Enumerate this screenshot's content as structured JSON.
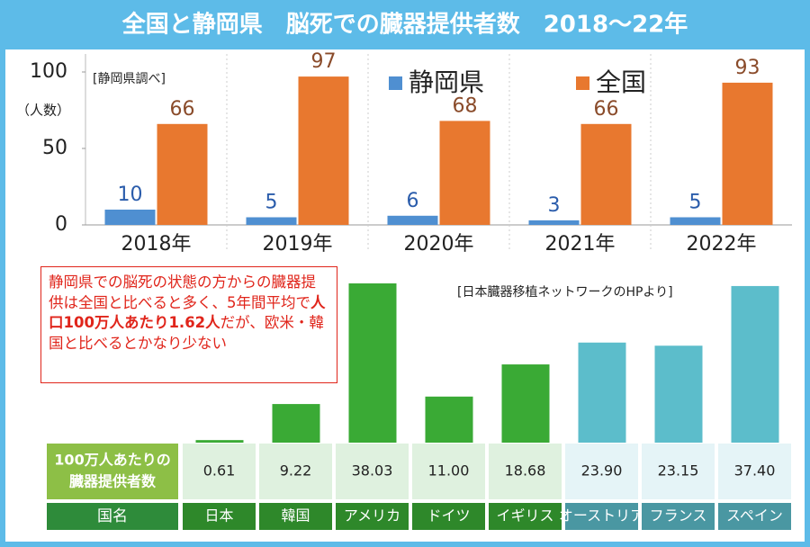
{
  "title": "全国と静岡県　脳死での臓器提供者数　2018～22年",
  "chart_data": [
    {
      "type": "bar",
      "note": "[静岡県調べ]",
      "y_label": "（人数）",
      "categories": [
        "2018年",
        "2019年",
        "2020年",
        "2021年",
        "2022年"
      ],
      "series": [
        {
          "name": "静岡県",
          "color": "#4f8fd1",
          "values": [
            10,
            5,
            6,
            3,
            5
          ]
        },
        {
          "name": "全国",
          "color": "#e8782f",
          "values": [
            66,
            97,
            68,
            66,
            93
          ]
        }
      ],
      "ylim": [
        0,
        100
      ],
      "yticks": [
        0,
        50,
        100
      ],
      "grid": false
    },
    {
      "type": "bar",
      "source": "[日本臓器移植ネットワークのHPより]",
      "annotation": [
        "静岡県での脳死の状態の方からの臓器提供は全国と比べると多く、5年間平均で",
        "人口100万人あたり1.62人",
        "だが、欧米・韓国と比べるとかなり少ない"
      ],
      "row_label": [
        "100万人あたりの",
        "臓器提供者数"
      ],
      "category_label": "国名",
      "categories": [
        "日本",
        "韓国",
        "アメリカ",
        "ドイツ",
        "イギリス",
        "オーストリア",
        "フランス",
        "スペイン"
      ],
      "values": [
        0.61,
        9.22,
        38.03,
        11.0,
        18.68,
        23.9,
        23.15,
        37.4
      ],
      "value_labels": [
        "0.61",
        "9.22",
        "38.03",
        "11.00",
        "18.68",
        "23.90",
        "23.15",
        "37.40"
      ],
      "colors": [
        "#3aaa35",
        "#3aaa35",
        "#3aaa35",
        "#3aaa35",
        "#3aaa35",
        "#5cbdcb",
        "#5cbdcb",
        "#5cbdcb"
      ]
    }
  ]
}
